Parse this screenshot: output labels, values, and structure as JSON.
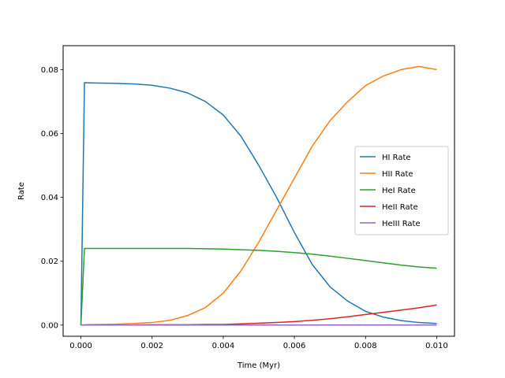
{
  "chart_data": {
    "type": "line",
    "title": "",
    "xlabel": "Time (Myr)",
    "ylabel": "Rate",
    "xlim": [
      -0.0005,
      0.0105
    ],
    "ylim": [
      -0.0035,
      0.0875
    ],
    "xticks": [
      0.0,
      0.002,
      0.004,
      0.006,
      0.008,
      0.01
    ],
    "xtick_labels": [
      "0.000",
      "0.002",
      "0.004",
      "0.006",
      "0.008",
      "0.010"
    ],
    "yticks": [
      0.0,
      0.02,
      0.04,
      0.06,
      0.08
    ],
    "ytick_labels": [
      "0.00",
      "0.02",
      "0.04",
      "0.06",
      "0.08"
    ],
    "grid": false,
    "legend_position": "center-right",
    "x": [
      0.0,
      0.0001,
      0.0005,
      0.001,
      0.0015,
      0.002,
      0.0025,
      0.003,
      0.0035,
      0.004,
      0.0045,
      0.005,
      0.0055,
      0.006,
      0.0065,
      0.007,
      0.0075,
      0.008,
      0.0085,
      0.009,
      0.0095,
      0.01
    ],
    "series": [
      {
        "name": "HI Rate",
        "color": "#1f77b4",
        "values": [
          0.0,
          0.0759,
          0.0758,
          0.0757,
          0.0755,
          0.0751,
          0.0742,
          0.0727,
          0.07,
          0.0658,
          0.0591,
          0.05,
          0.04,
          0.029,
          0.019,
          0.012,
          0.0075,
          0.0043,
          0.0025,
          0.0014,
          0.0008,
          0.0005
        ]
      },
      {
        "name": "HII Rate",
        "color": "#ff7f0e",
        "values": [
          0.0,
          0.0001,
          0.0002,
          0.0003,
          0.0005,
          0.0008,
          0.0015,
          0.003,
          0.0055,
          0.01,
          0.017,
          0.026,
          0.036,
          0.046,
          0.056,
          0.064,
          0.07,
          0.075,
          0.078,
          0.08,
          0.081,
          0.08
        ]
      },
      {
        "name": "HeI Rate",
        "color": "#2ca02c",
        "values": [
          0.0,
          0.024,
          0.024,
          0.024,
          0.024,
          0.024,
          0.024,
          0.024,
          0.0239,
          0.0238,
          0.0236,
          0.0234,
          0.0231,
          0.0227,
          0.0222,
          0.0216,
          0.0209,
          0.0202,
          0.0195,
          0.0188,
          0.0182,
          0.0178
        ]
      },
      {
        "name": "HeII Rate",
        "color": "#d62728",
        "values": [
          0.0,
          0.0,
          0.0,
          0.0,
          0.0,
          0.0001,
          0.0001,
          0.0001,
          0.0002,
          0.0002,
          0.0004,
          0.0006,
          0.0008,
          0.0011,
          0.0015,
          0.002,
          0.0026,
          0.0033,
          0.004,
          0.0047,
          0.0054,
          0.0063
        ]
      },
      {
        "name": "HeIII Rate",
        "color": "#9467bd",
        "values": [
          0.0,
          0.0,
          0.0,
          0.0,
          0.0,
          0.0,
          0.0,
          0.0,
          0.0,
          0.0,
          0.0,
          0.0,
          0.0,
          0.0,
          0.0,
          0.0,
          0.0,
          0.0,
          0.0,
          0.0,
          0.0,
          0.0
        ]
      }
    ]
  }
}
